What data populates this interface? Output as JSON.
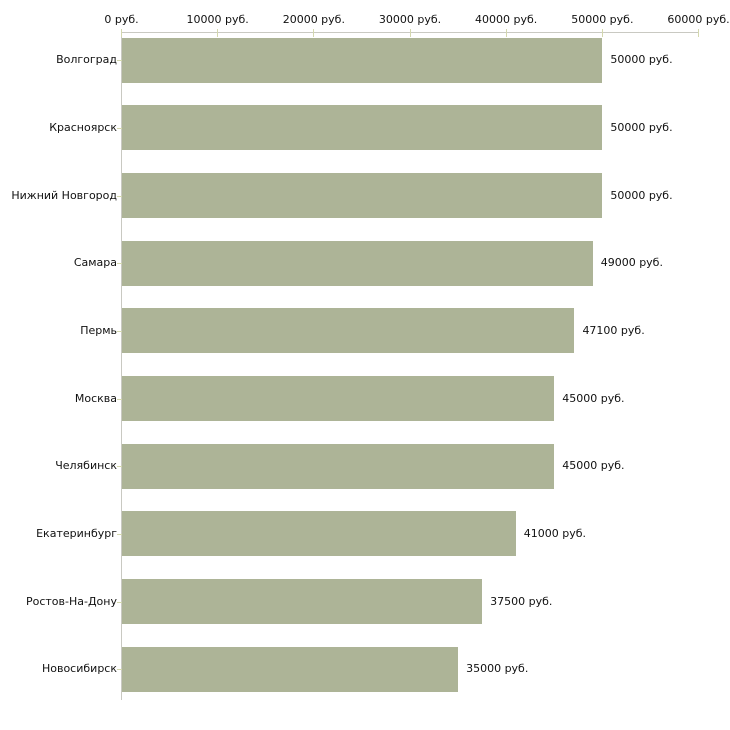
{
  "chart_data": {
    "type": "bar",
    "orientation": "horizontal",
    "title": "",
    "xlabel": "",
    "ylabel": "",
    "unit": "руб.",
    "categories": [
      "Волгоград",
      "Красноярск",
      "Нижний Новгород",
      "Самара",
      "Пермь",
      "Москва",
      "Челябинск",
      "Екатеринбург",
      "Ростов-На-Дону",
      "Новосибирск"
    ],
    "values": [
      50000,
      50000,
      50000,
      49000,
      47100,
      45000,
      45000,
      41000,
      37500,
      35000
    ],
    "value_labels": [
      "50000 руб.",
      "50000 руб.",
      "50000 руб.",
      "49000 руб.",
      "47100 руб.",
      "45000 руб.",
      "45000 руб.",
      "41000 руб.",
      "37500 руб.",
      "35000 руб."
    ],
    "x_tick_values": [
      0,
      10000,
      20000,
      30000,
      40000,
      50000,
      60000
    ],
    "x_tick_labels": [
      "0 руб.",
      "10000 руб.",
      "20000 руб.",
      "30000 руб.",
      "40000 руб.",
      "50000 руб.",
      "60000 руб."
    ],
    "xlim": [
      0,
      60000
    ],
    "grid": false,
    "legend": "none",
    "bar_color": "#adb497",
    "axis_color": "#c9c9c2",
    "tick_mark_color": "#d4d8ae",
    "text_color": "#111111",
    "background_color": "#ffffff"
  }
}
